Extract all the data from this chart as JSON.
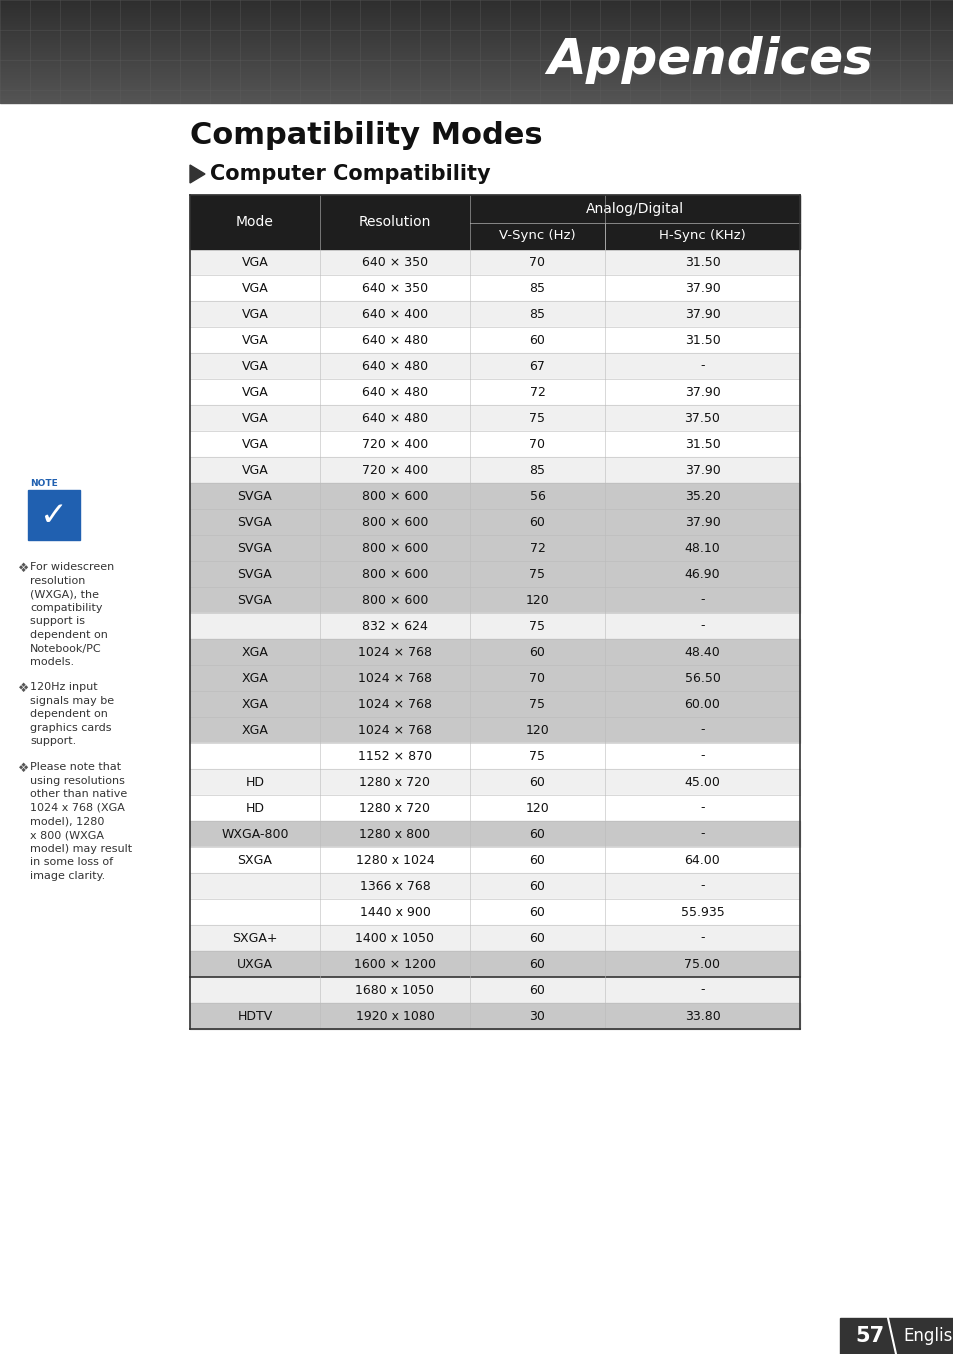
{
  "title": "Appendices",
  "section_title": "Compatibility Modes",
  "subsection_title": "Computer Compatibility",
  "rows": [
    [
      "VGA",
      "640 × 350",
      "70",
      "31.50"
    ],
    [
      "VGA",
      "640 × 350",
      "85",
      "37.90"
    ],
    [
      "VGA",
      "640 × 400",
      "85",
      "37.90"
    ],
    [
      "VGA",
      "640 × 480",
      "60",
      "31.50"
    ],
    [
      "VGA",
      "640 × 480",
      "67",
      "-"
    ],
    [
      "VGA",
      "640 × 480",
      "72",
      "37.90"
    ],
    [
      "VGA",
      "640 × 480",
      "75",
      "37.50"
    ],
    [
      "VGA",
      "720 × 400",
      "70",
      "31.50"
    ],
    [
      "VGA",
      "720 × 400",
      "85",
      "37.90"
    ],
    [
      "SVGA",
      "800 × 600",
      "56",
      "35.20"
    ],
    [
      "SVGA",
      "800 × 600",
      "60",
      "37.90"
    ],
    [
      "SVGA",
      "800 × 600",
      "72",
      "48.10"
    ],
    [
      "SVGA",
      "800 × 600",
      "75",
      "46.90"
    ],
    [
      "SVGA",
      "800 × 600",
      "120",
      "-"
    ],
    [
      "",
      "832 × 624",
      "75",
      "-"
    ],
    [
      "XGA",
      "1024 × 768",
      "60",
      "48.40"
    ],
    [
      "XGA",
      "1024 × 768",
      "70",
      "56.50"
    ],
    [
      "XGA",
      "1024 × 768",
      "75",
      "60.00"
    ],
    [
      "XGA",
      "1024 × 768",
      "120",
      "-"
    ],
    [
      "",
      "1152 × 870",
      "75",
      "-"
    ],
    [
      "HD",
      "1280 x 720",
      "60",
      "45.00"
    ],
    [
      "HD",
      "1280 x 720",
      "120",
      "-"
    ],
    [
      "WXGA-800",
      "1280 x 800",
      "60",
      "-"
    ],
    [
      "SXGA",
      "1280 x 1024",
      "60",
      "64.00"
    ],
    [
      "",
      "1366 x 768",
      "60",
      "-"
    ],
    [
      "",
      "1440 x 900",
      "60",
      "55.935"
    ],
    [
      "SXGA+",
      "1400 x 1050",
      "60",
      "-"
    ],
    [
      "UXGA",
      "1600 × 1200",
      "60",
      "75.00"
    ],
    [
      "",
      "1680 x 1050",
      "60",
      "-"
    ],
    [
      "HDTV",
      "1920 x 1080",
      "30",
      "33.80"
    ]
  ],
  "shaded_mode_rows": [
    "SVGA",
    "XGA",
    "WXGA-800",
    "UXGA",
    "HDTV"
  ],
  "bold_border_after_row": 27,
  "page_bg": "#ffffff",
  "header_bg": "#1e1e1e",
  "note_texts": [
    "For widescreen\nresolution\n(WXGA), the\ncompatibility\nsupport is\ndependent on\nNotebook/PC\nmodels.",
    "120Hz input\nsignals may be\ndependent on\ngraphics cards\nsupport.",
    "Please note that\nusing resolutions\nother than native\n1024 x 768 (XGA\nmodel), 1280\nx 800 (WXGA\nmodel) may result\nin some loss of\nimage clarity."
  ],
  "footer_number": "57",
  "footer_text": "English"
}
